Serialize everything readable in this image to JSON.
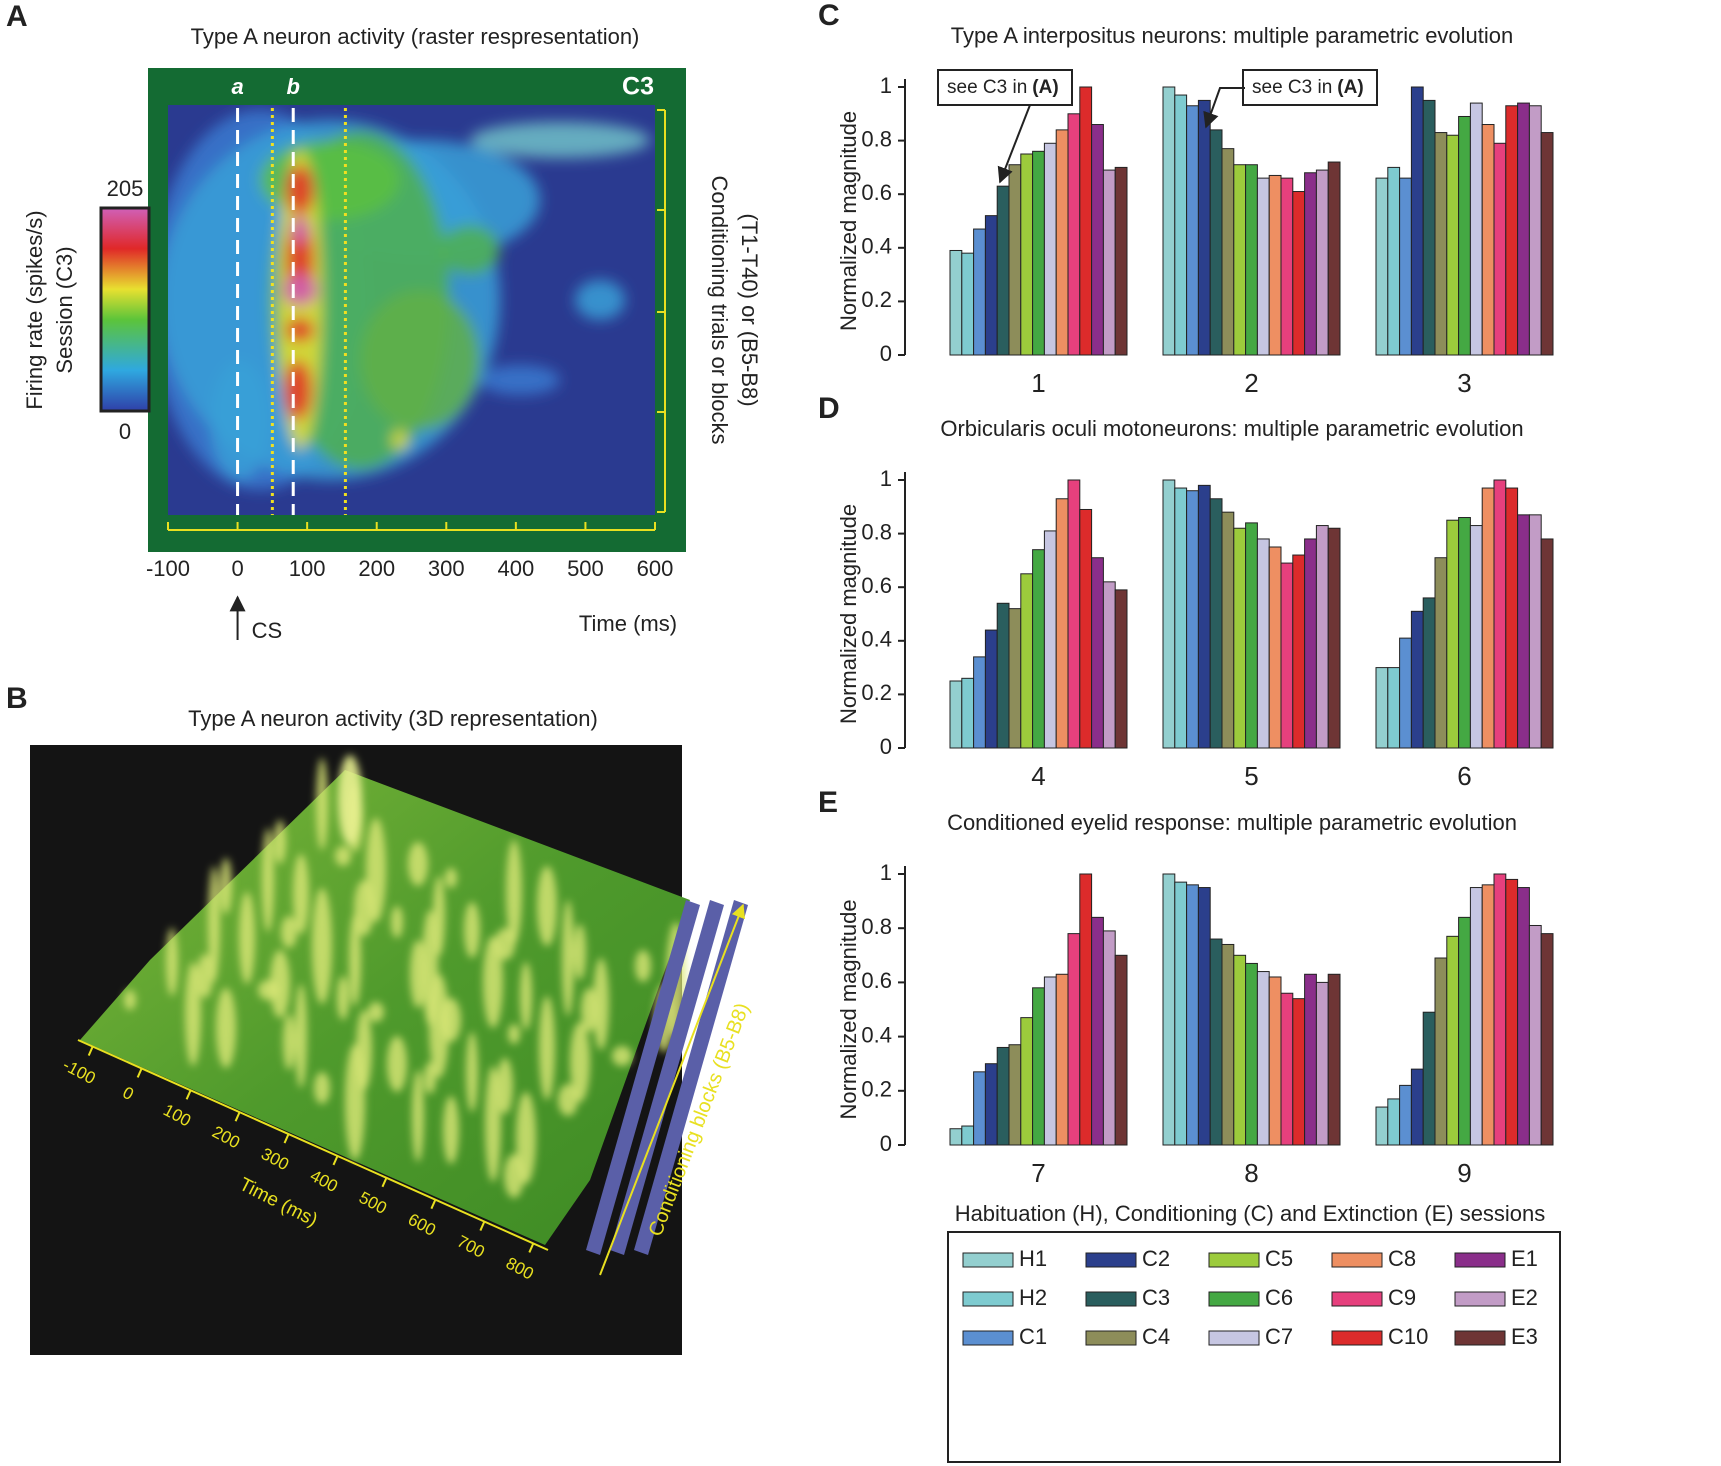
{
  "chart_data": [
    {
      "panel": "A",
      "type": "heatmap",
      "title": "Type A neuron activity (raster respresentation)",
      "session": "C3",
      "xlabel": "Time (ms)",
      "ylabel": [
        "Conditioning trials or blocks",
        "(T1-T40) or (B5-B8)"
      ],
      "xlim": [
        -100,
        600
      ],
      "xticks": [
        -100,
        0,
        100,
        200,
        300,
        400,
        500,
        600
      ],
      "marker_lines": [
        {
          "label": "a",
          "value": 0
        },
        {
          "label": "b",
          "value": 80
        }
      ],
      "window_lines": [
        50,
        155
      ],
      "colorbar_label": [
        "Firing rate (spikes/s)",
        "Session (C3)"
      ],
      "clim": [
        0,
        205
      ],
      "colorbar_ticks": [
        0,
        205
      ],
      "annotation": {
        "text": "CS",
        "value": 0
      }
    },
    {
      "panel": "B",
      "type": "surface",
      "title": "Type A neuron activity (3D representation)",
      "xlabel": "Time (ms)",
      "ylabel": "Conditioning blocks (B5-B8)",
      "xlim": [
        -130,
        830
      ],
      "xticks": [
        -100,
        0,
        100,
        200,
        300,
        400,
        500,
        600,
        700,
        800
      ]
    },
    {
      "panel": "C",
      "type": "bar",
      "title": "Type A interpositus neurons: multiple parametric evolution",
      "ylabel": "Normalized magnitude",
      "categories": [
        "1",
        "2",
        "3"
      ],
      "ylim": [
        0,
        1
      ],
      "yticks": [
        0,
        0.2,
        0.4,
        0.6,
        0.8,
        1
      ],
      "annotations": [
        {
          "text": "see C3 in",
          "ref": "(A)"
        },
        {
          "text": "see C3 in",
          "ref": "(A)"
        }
      ],
      "series": [
        {
          "name": "H1",
          "color": "#93cfcf",
          "values": [
            0.39,
            1.0,
            0.66
          ]
        },
        {
          "name": "H2",
          "color": "#7ecbd0",
          "values": [
            0.38,
            0.97,
            0.7
          ]
        },
        {
          "name": "C1",
          "color": "#5b8fd1",
          "values": [
            0.47,
            0.93,
            0.66
          ]
        },
        {
          "name": "C2",
          "color": "#2b3f8c",
          "values": [
            0.52,
            0.95,
            1.0
          ]
        },
        {
          "name": "C3",
          "color": "#2a5e5e",
          "values": [
            0.63,
            0.84,
            0.95
          ]
        },
        {
          "name": "C4",
          "color": "#8d8d5a",
          "values": [
            0.71,
            0.77,
            0.83
          ]
        },
        {
          "name": "C5",
          "color": "#9ccb3c",
          "values": [
            0.75,
            0.71,
            0.82
          ]
        },
        {
          "name": "C6",
          "color": "#44a843",
          "values": [
            0.76,
            0.71,
            0.89
          ]
        },
        {
          "name": "C7",
          "color": "#c6c6e2",
          "values": [
            0.79,
            0.66,
            0.94
          ]
        },
        {
          "name": "C8",
          "color": "#ee8f62",
          "values": [
            0.84,
            0.67,
            0.86
          ]
        },
        {
          "name": "C9",
          "color": "#e6407d",
          "values": [
            0.9,
            0.66,
            0.79
          ]
        },
        {
          "name": "C10",
          "color": "#dc2b2b",
          "values": [
            1.0,
            0.61,
            0.93
          ]
        },
        {
          "name": "E1",
          "color": "#8a2e8a",
          "values": [
            0.86,
            0.68,
            0.94
          ]
        },
        {
          "name": "E2",
          "color": "#c29cc6",
          "values": [
            0.69,
            0.69,
            0.93
          ]
        },
        {
          "name": "E3",
          "color": "#6e3535",
          "values": [
            0.7,
            0.72,
            0.83
          ]
        }
      ]
    },
    {
      "panel": "D",
      "type": "bar",
      "title": "Orbicularis oculi motoneurons: multiple parametric evolution",
      "ylabel": "Normalized magnitude",
      "categories": [
        "4",
        "5",
        "6"
      ],
      "ylim": [
        0,
        1
      ],
      "yticks": [
        0,
        0.2,
        0.4,
        0.6,
        0.8,
        1
      ],
      "series": [
        {
          "name": "H1",
          "color": "#93cfcf",
          "values": [
            0.25,
            1.0,
            0.3
          ]
        },
        {
          "name": "H2",
          "color": "#7ecbd0",
          "values": [
            0.26,
            0.97,
            0.3
          ]
        },
        {
          "name": "C1",
          "color": "#5b8fd1",
          "values": [
            0.34,
            0.96,
            0.41
          ]
        },
        {
          "name": "C2",
          "color": "#2b3f8c",
          "values": [
            0.44,
            0.98,
            0.51
          ]
        },
        {
          "name": "C3",
          "color": "#2a5e5e",
          "values": [
            0.54,
            0.93,
            0.56
          ]
        },
        {
          "name": "C4",
          "color": "#8d8d5a",
          "values": [
            0.52,
            0.88,
            0.71
          ]
        },
        {
          "name": "C5",
          "color": "#9ccb3c",
          "values": [
            0.65,
            0.82,
            0.85
          ]
        },
        {
          "name": "C6",
          "color": "#44a843",
          "values": [
            0.74,
            0.84,
            0.86
          ]
        },
        {
          "name": "C7",
          "color": "#c6c6e2",
          "values": [
            0.81,
            0.78,
            0.83
          ]
        },
        {
          "name": "C8",
          "color": "#ee8f62",
          "values": [
            0.93,
            0.75,
            0.97
          ]
        },
        {
          "name": "C9",
          "color": "#e6407d",
          "values": [
            1.0,
            0.69,
            1.0
          ]
        },
        {
          "name": "C10",
          "color": "#dc2b2b",
          "values": [
            0.89,
            0.72,
            0.97
          ]
        },
        {
          "name": "E1",
          "color": "#8a2e8a",
          "values": [
            0.71,
            0.78,
            0.87
          ]
        },
        {
          "name": "E2",
          "color": "#c29cc6",
          "values": [
            0.62,
            0.83,
            0.87
          ]
        },
        {
          "name": "E3",
          "color": "#6e3535",
          "values": [
            0.59,
            0.82,
            0.78
          ]
        }
      ]
    },
    {
      "panel": "E",
      "type": "bar",
      "title": "Conditioned eyelid response: multiple parametric evolution",
      "ylabel": "Normalized magnitude",
      "categories": [
        "7",
        "8",
        "9"
      ],
      "ylim": [
        0,
        1
      ],
      "yticks": [
        0,
        0.2,
        0.4,
        0.6,
        0.8,
        1
      ],
      "legend_title": "Habituation (H), Conditioning (C) and Extinction (E) sessions",
      "series": [
        {
          "name": "H1",
          "color": "#93cfcf",
          "values": [
            0.06,
            1.0,
            0.14
          ]
        },
        {
          "name": "H2",
          "color": "#7ecbd0",
          "values": [
            0.07,
            0.97,
            0.17
          ]
        },
        {
          "name": "C1",
          "color": "#5b8fd1",
          "values": [
            0.27,
            0.96,
            0.22
          ]
        },
        {
          "name": "C2",
          "color": "#2b3f8c",
          "values": [
            0.3,
            0.95,
            0.28
          ]
        },
        {
          "name": "C3",
          "color": "#2a5e5e",
          "values": [
            0.36,
            0.76,
            0.49
          ]
        },
        {
          "name": "C4",
          "color": "#8d8d5a",
          "values": [
            0.37,
            0.74,
            0.69
          ]
        },
        {
          "name": "C5",
          "color": "#9ccb3c",
          "values": [
            0.47,
            0.7,
            0.77
          ]
        },
        {
          "name": "C6",
          "color": "#44a843",
          "values": [
            0.58,
            0.67,
            0.84
          ]
        },
        {
          "name": "C7",
          "color": "#c6c6e2",
          "values": [
            0.62,
            0.64,
            0.95
          ]
        },
        {
          "name": "C8",
          "color": "#ee8f62",
          "values": [
            0.63,
            0.62,
            0.96
          ]
        },
        {
          "name": "C9",
          "color": "#e6407d",
          "values": [
            0.78,
            0.56,
            1.0
          ]
        },
        {
          "name": "C10",
          "color": "#dc2b2b",
          "values": [
            1.0,
            0.54,
            0.98
          ]
        },
        {
          "name": "E1",
          "color": "#8a2e8a",
          "values": [
            0.84,
            0.63,
            0.95
          ]
        },
        {
          "name": "E2",
          "color": "#c29cc6",
          "values": [
            0.79,
            0.6,
            0.81
          ]
        },
        {
          "name": "E3",
          "color": "#6e3535",
          "values": [
            0.7,
            0.63,
            0.78
          ]
        }
      ]
    }
  ]
}
